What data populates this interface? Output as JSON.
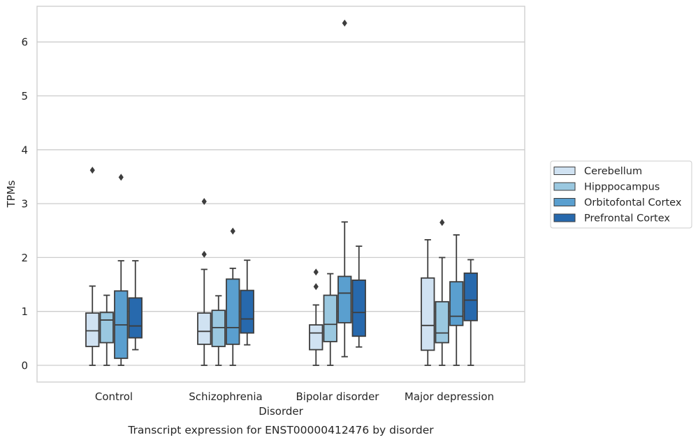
{
  "chart_data": {
    "type": "box",
    "xlabel": "Disorder",
    "ylabel": "TPMs",
    "caption": "Transcript expression for ENST00000412476 by disorder",
    "ylim": [
      -0.3,
      6.7
    ],
    "yticks": [
      "0",
      "1",
      "2",
      "3",
      "4",
      "5",
      "6"
    ],
    "grid": "horizontal",
    "legend_position": "right",
    "categories": [
      "Control",
      "Schizophrenia",
      "Bipolar disorder",
      "Major depression"
    ],
    "series": [
      {
        "name": "Cerebellum",
        "color": "#d0e2f2",
        "boxes": [
          {
            "whisker_low": 0.0,
            "q1": 0.35,
            "median": 0.64,
            "q3": 0.97,
            "whisker_high": 1.47,
            "outliers": [
              3.62
            ]
          },
          {
            "whisker_low": 0.0,
            "q1": 0.39,
            "median": 0.63,
            "q3": 0.97,
            "whisker_high": 1.78,
            "outliers": [
              2.06,
              3.04
            ]
          },
          {
            "whisker_low": 0.0,
            "q1": 0.29,
            "median": 0.6,
            "q3": 0.75,
            "whisker_high": 1.12,
            "outliers": [
              1.46,
              1.73
            ]
          },
          {
            "whisker_low": 0.0,
            "q1": 0.28,
            "median": 0.74,
            "q3": 1.62,
            "whisker_high": 2.33,
            "outliers": []
          }
        ]
      },
      {
        "name": "Hipppocampus",
        "color": "#9ac8e0",
        "boxes": [
          {
            "whisker_low": 0.0,
            "q1": 0.42,
            "median": 0.84,
            "q3": 0.98,
            "whisker_high": 1.3,
            "outliers": []
          },
          {
            "whisker_low": 0.0,
            "q1": 0.35,
            "median": 0.7,
            "q3": 1.02,
            "whisker_high": 1.29,
            "outliers": []
          },
          {
            "whisker_low": 0.0,
            "q1": 0.44,
            "median": 0.76,
            "q3": 1.3,
            "whisker_high": 1.7,
            "outliers": []
          },
          {
            "whisker_low": 0.0,
            "q1": 0.42,
            "median": 0.6,
            "q3": 1.18,
            "whisker_high": 2.0,
            "outliers": [
              2.65
            ]
          }
        ]
      },
      {
        "name": "Orbitofontal Cortex",
        "color": "#5a9fcf",
        "boxes": [
          {
            "whisker_low": 0.0,
            "q1": 0.13,
            "median": 0.75,
            "q3": 1.38,
            "whisker_high": 1.94,
            "outliers": [
              3.49
            ]
          },
          {
            "whisker_low": 0.0,
            "q1": 0.39,
            "median": 0.7,
            "q3": 1.6,
            "whisker_high": 1.8,
            "outliers": [
              2.49
            ]
          },
          {
            "whisker_low": 0.16,
            "q1": 0.79,
            "median": 1.34,
            "q3": 1.65,
            "whisker_high": 2.66,
            "outliers": [
              6.35
            ]
          },
          {
            "whisker_low": 0.0,
            "q1": 0.74,
            "median": 0.91,
            "q3": 1.55,
            "whisker_high": 2.42,
            "outliers": []
          }
        ]
      },
      {
        "name": "Prefrontal Cortex",
        "color": "#2769ad",
        "boxes": [
          {
            "whisker_low": 0.29,
            "q1": 0.51,
            "median": 0.73,
            "q3": 1.25,
            "whisker_high": 1.94,
            "outliers": []
          },
          {
            "whisker_low": 0.38,
            "q1": 0.6,
            "median": 0.86,
            "q3": 1.39,
            "whisker_high": 1.95,
            "outliers": []
          },
          {
            "whisker_low": 0.34,
            "q1": 0.54,
            "median": 0.98,
            "q3": 1.58,
            "whisker_high": 2.21,
            "outliers": []
          },
          {
            "whisker_low": 0.0,
            "q1": 0.83,
            "median": 1.21,
            "q3": 1.71,
            "whisker_high": 1.96,
            "outliers": []
          }
        ]
      }
    ]
  }
}
